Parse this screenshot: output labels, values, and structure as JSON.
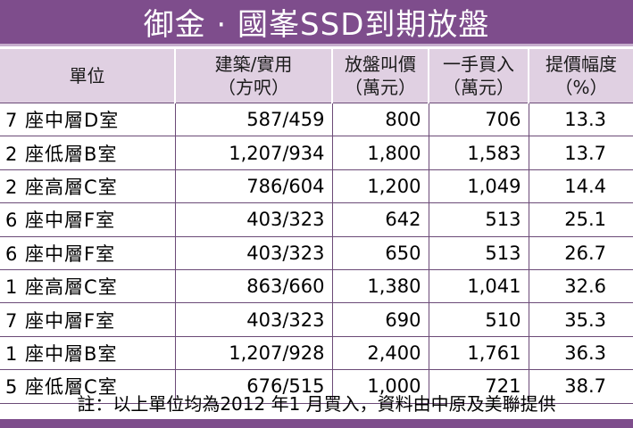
{
  "title": "御金 · 國峯SSD到期放盤",
  "headers": [
    {
      "line1": "單位",
      "line2": ""
    },
    {
      "line1": "建築/實用",
      "line2": "（方呎）"
    },
    {
      "line1": "放盤叫價",
      "line2": "（萬元）"
    },
    {
      "line1": "一手買入",
      "line2": "（萬元）"
    },
    {
      "line1": "提價幅度",
      "line2": "（%）"
    }
  ],
  "rows": [
    [
      "7 座中層D室",
      "587/459",
      "800",
      "706",
      "13.3"
    ],
    [
      "2 座低層B室",
      "1,207/934",
      "1,800",
      "1,583",
      "13.7"
    ],
    [
      "2 座高層C室",
      "786/604",
      "1,200",
      "1,049",
      "14.4"
    ],
    [
      "6 座中層F室",
      "403/323",
      "642",
      "513",
      "25.1"
    ],
    [
      "6 座中層F室",
      "403/323",
      "650",
      "513",
      "26.7"
    ],
    [
      "1 座高層C室",
      "863/660",
      "1,380",
      "1,041",
      "32.6"
    ],
    [
      "7 座中層F室",
      "403/323",
      "690",
      "510",
      "35.3"
    ],
    [
      "1 座中層B室",
      "1,207/928",
      "2,400",
      "1,761",
      "36.3"
    ],
    [
      "5 座低層C室",
      "676/515",
      "1,000",
      "721",
      "38.7"
    ]
  ],
  "note": "註：以上單位均為2012 年1 月買入，資料由中原及美聯提供",
  "colors": {
    "accent": "#7e4d8c",
    "header_bg": "#e0d0e2",
    "border": "#6b4a77"
  }
}
